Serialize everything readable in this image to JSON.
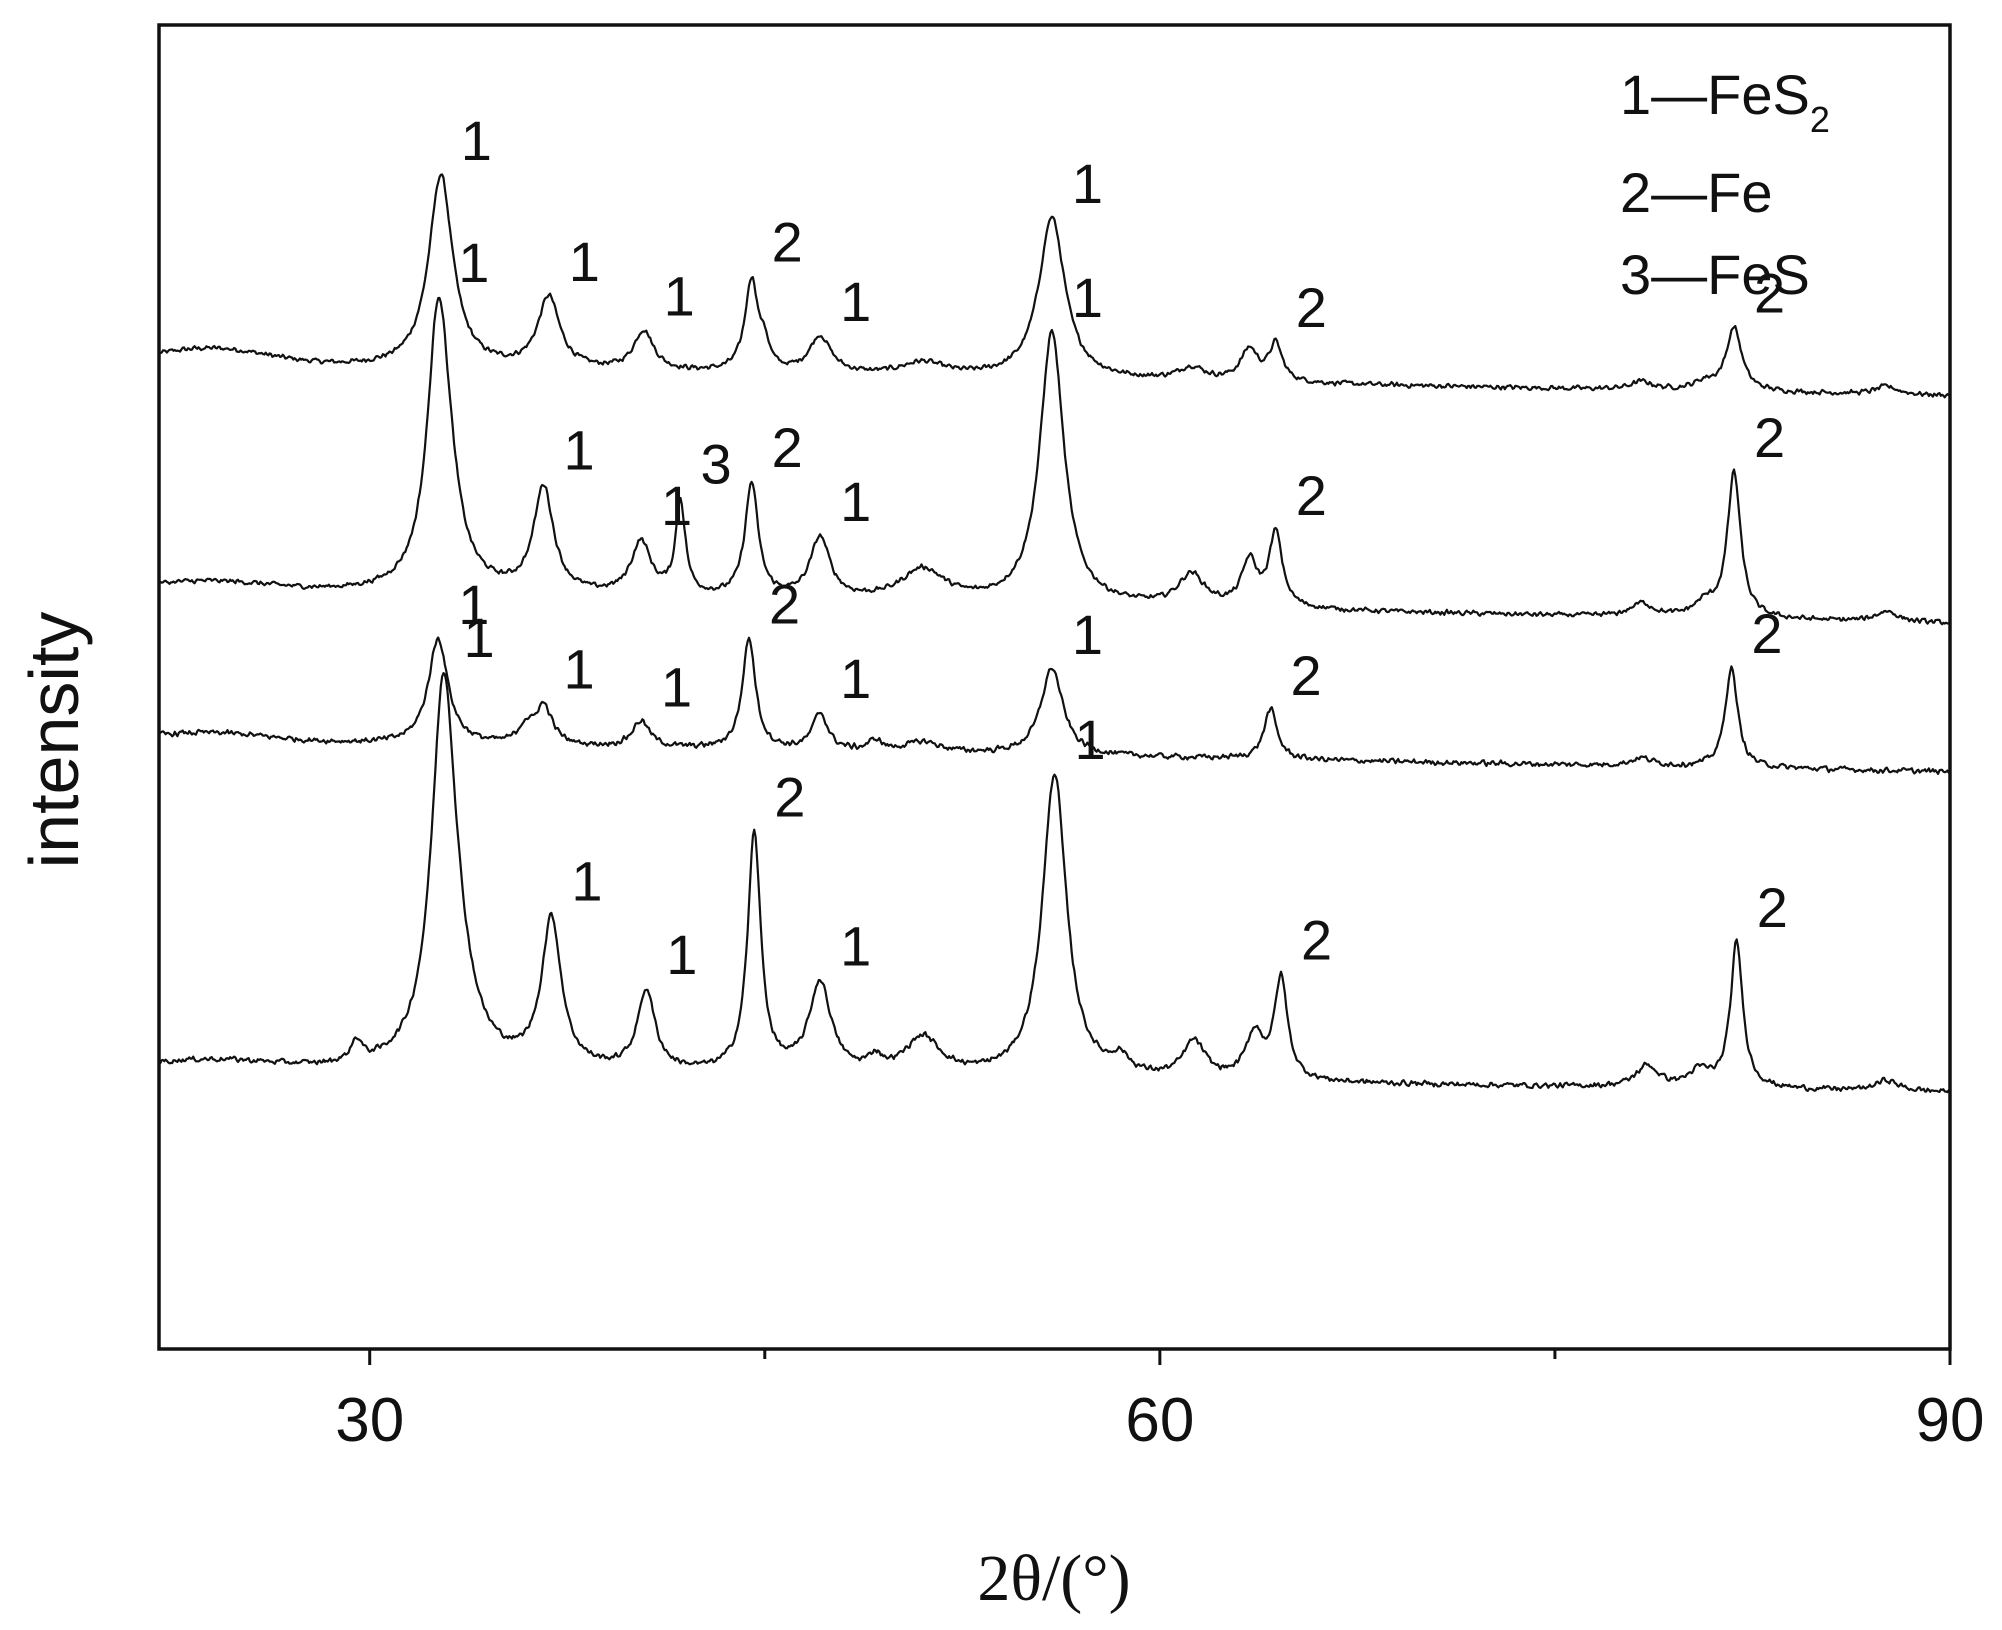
{
  "chart_data": {
    "type": "line",
    "title": "",
    "xlabel": "2θ/(°)",
    "ylabel": "intensity",
    "xlim": [
      22,
      90
    ],
    "x_ticks": [
      30,
      60,
      90
    ],
    "x_minor_ticks": [
      45,
      75
    ],
    "y_ticks": [],
    "grid": false,
    "legend": {
      "placement": "top-right",
      "entries": [
        {
          "id": "1",
          "dash": "—",
          "formula": "FeS",
          "sub": "2"
        },
        {
          "id": "2",
          "dash": "—",
          "formula": "Fe",
          "sub": ""
        },
        {
          "id": "3",
          "dash": "—",
          "formula": "FeS",
          "sub": ""
        }
      ]
    },
    "series": [
      {
        "baseline": 37.2,
        "drop": 1.2,
        "start_bump": 0.6,
        "noise": 0.22,
        "peaks": [
          {
            "x": 32.7,
            "h": 7.3,
            "w": 0.55,
            "label": "1"
          },
          {
            "x": 36.8,
            "h": 2.7,
            "w": 0.5,
            "label": "1"
          },
          {
            "x": 40.4,
            "h": 1.5,
            "w": 0.45,
            "label": "1"
          },
          {
            "x": 44.5,
            "h": 3.5,
            "w": 0.3,
            "label": "2"
          },
          {
            "x": 45.0,
            "h": 0.8,
            "w": 0.2
          },
          {
            "x": 47.1,
            "h": 1.4,
            "w": 0.5,
            "label": "1"
          },
          {
            "x": 51.0,
            "h": 0.5,
            "w": 1.0
          },
          {
            "x": 55.9,
            "h": 6.1,
            "w": 0.6,
            "label": "1"
          },
          {
            "x": 61.2,
            "h": 0.5,
            "w": 0.6
          },
          {
            "x": 63.4,
            "h": 1.2,
            "w": 0.4
          },
          {
            "x": 64.4,
            "h": 1.4,
            "w": 0.3,
            "label": "2"
          },
          {
            "x": 81.8,
            "h": 2.4,
            "w": 0.35,
            "label": "2"
          },
          {
            "x": 78.3,
            "h": 0.3,
            "w": 0.5
          },
          {
            "x": 80.7,
            "h": 0.3,
            "w": 0.5
          },
          {
            "x": 87.6,
            "h": 0.3,
            "w": 0.5
          }
        ]
      },
      {
        "baseline": 28.7,
        "drop": 1.3,
        "start_bump": 0.3,
        "noise": 0.22,
        "peaks": [
          {
            "x": 32.6,
            "h": 9.7,
            "w": 0.5,
            "label": "1"
          },
          {
            "x": 32.95,
            "h": 2.0,
            "w": 0.6
          },
          {
            "x": 36.6,
            "h": 4.0,
            "w": 0.45,
            "label": "1"
          },
          {
            "x": 40.3,
            "h": 2.0,
            "w": 0.45,
            "label": "1"
          },
          {
            "x": 41.8,
            "h": 3.5,
            "w": 0.22,
            "label": "3"
          },
          {
            "x": 44.5,
            "h": 4.3,
            "w": 0.3,
            "label": "2"
          },
          {
            "x": 47.1,
            "h": 2.3,
            "w": 0.45,
            "label": "1"
          },
          {
            "x": 51.0,
            "h": 1.2,
            "w": 1.0
          },
          {
            "x": 55.9,
            "h": 10.3,
            "w": 0.55,
            "label": "1"
          },
          {
            "x": 61.2,
            "h": 1.2,
            "w": 0.6
          },
          {
            "x": 63.4,
            "h": 1.7,
            "w": 0.35
          },
          {
            "x": 64.4,
            "h": 2.8,
            "w": 0.3,
            "label": "2"
          },
          {
            "x": 81.8,
            "h": 5.5,
            "w": 0.3,
            "label": "2"
          },
          {
            "x": 78.3,
            "h": 0.5,
            "w": 0.5
          },
          {
            "x": 80.7,
            "h": 0.5,
            "w": 0.5
          },
          {
            "x": 87.6,
            "h": 0.4,
            "w": 0.5
          }
        ]
      },
      {
        "baseline": 23.0,
        "drop": 1.2,
        "start_bump": 0.3,
        "noise": 0.25,
        "peaks": [
          {
            "x": 32.6,
            "h": 4.0,
            "w": 0.45,
            "label": "1"
          },
          {
            "x": 36.6,
            "h": 1.5,
            "w": 0.4,
            "label": "1"
          },
          {
            "x": 35.9,
            "h": 0.6,
            "w": 0.3
          },
          {
            "x": 40.3,
            "h": 1.0,
            "w": 0.4,
            "label": "1"
          },
          {
            "x": 44.4,
            "h": 4.2,
            "w": 0.3,
            "label": "2"
          },
          {
            "x": 47.1,
            "h": 1.4,
            "w": 0.35,
            "label": "1"
          },
          {
            "x": 49.2,
            "h": 0.4,
            "w": 0.3
          },
          {
            "x": 51.0,
            "h": 0.4,
            "w": 0.8
          },
          {
            "x": 55.9,
            "h": 3.3,
            "w": 0.5,
            "label": "1"
          },
          {
            "x": 64.2,
            "h": 1.9,
            "w": 0.3,
            "label": "2"
          },
          {
            "x": 81.7,
            "h": 3.8,
            "w": 0.28,
            "label": "2"
          },
          {
            "x": 78.3,
            "h": 0.3,
            "w": 0.5
          }
        ]
      },
      {
        "baseline": 10.6,
        "drop": 0.9,
        "start_bump": 0.3,
        "noise": 0.25,
        "peaks": [
          {
            "x": 32.8,
            "h": 13.6,
            "w": 0.55,
            "label": "1"
          },
          {
            "x": 33.3,
            "h": 2.0,
            "w": 0.8
          },
          {
            "x": 36.9,
            "h": 5.6,
            "w": 0.45,
            "label": "1"
          },
          {
            "x": 29.5,
            "h": 0.8,
            "w": 0.25
          },
          {
            "x": 40.5,
            "h": 3.0,
            "w": 0.4,
            "label": "1"
          },
          {
            "x": 44.6,
            "h": 9.0,
            "w": 0.3,
            "label": "2"
          },
          {
            "x": 47.1,
            "h": 3.4,
            "w": 0.5,
            "label": "1"
          },
          {
            "x": 49.2,
            "h": 0.5,
            "w": 0.3
          },
          {
            "x": 51.0,
            "h": 1.4,
            "w": 0.8
          },
          {
            "x": 56.0,
            "h": 11.5,
            "w": 0.55,
            "label": "1"
          },
          {
            "x": 58.5,
            "h": 0.6,
            "w": 0.4
          },
          {
            "x": 61.3,
            "h": 1.4,
            "w": 0.5
          },
          {
            "x": 63.6,
            "h": 1.7,
            "w": 0.4
          },
          {
            "x": 64.6,
            "h": 3.8,
            "w": 0.3,
            "label": "2"
          },
          {
            "x": 81.9,
            "h": 5.5,
            "w": 0.28,
            "label": "2"
          },
          {
            "x": 78.5,
            "h": 0.8,
            "w": 0.5
          },
          {
            "x": 80.5,
            "h": 0.6,
            "w": 0.5
          },
          {
            "x": 87.6,
            "h": 0.4,
            "w": 0.5
          }
        ]
      }
    ]
  }
}
